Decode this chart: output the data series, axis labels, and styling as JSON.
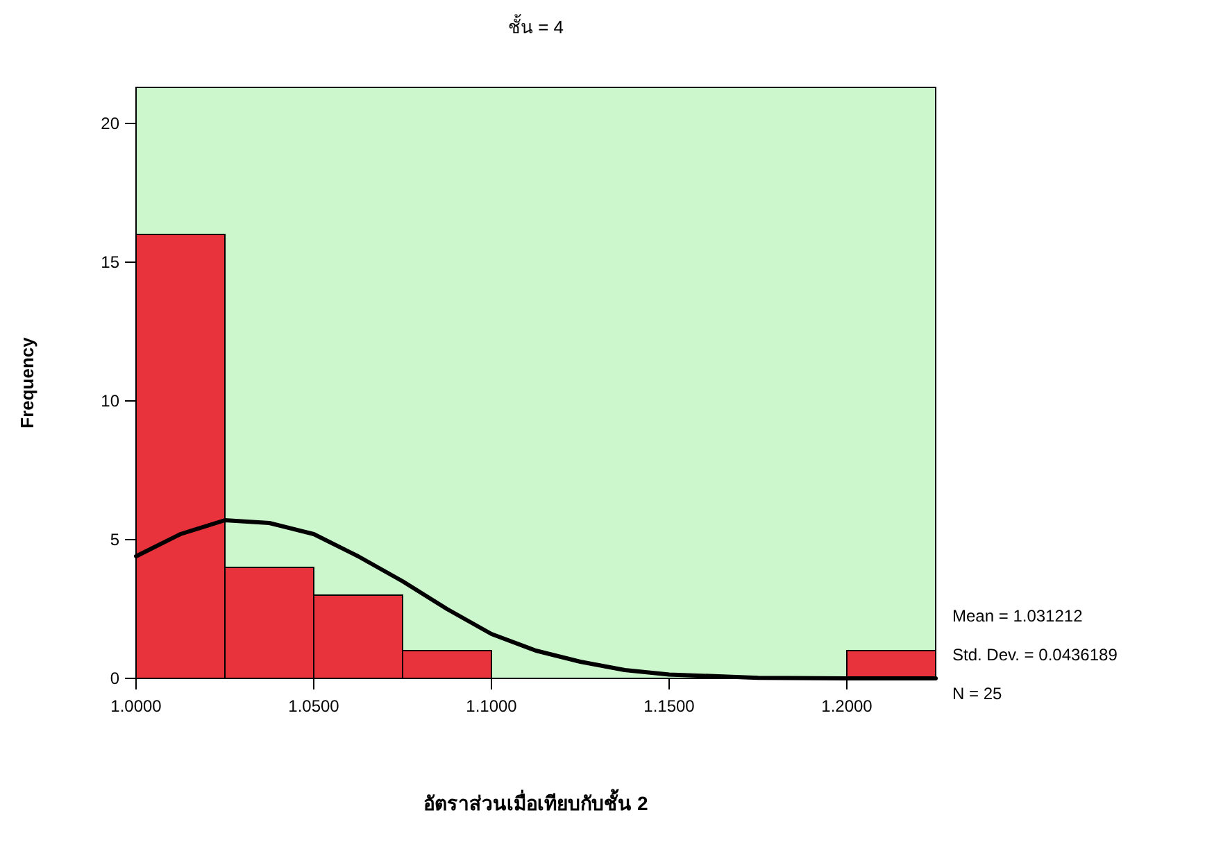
{
  "chart_data": {
    "type": "histogram",
    "title": "ชั้น = 4",
    "xlabel": "อัตราส่วนเมื่อเทียบกับชั้น 2",
    "ylabel": "Frequency",
    "xlim": [
      1.0,
      1.225
    ],
    "ylim": [
      0,
      21.3
    ],
    "xticks": [
      {
        "value": 1.0,
        "label": "1.0000"
      },
      {
        "value": 1.05,
        "label": "1.0500"
      },
      {
        "value": 1.1,
        "label": "1.1000"
      },
      {
        "value": 1.15,
        "label": "1.1500"
      },
      {
        "value": 1.2,
        "label": "1.2000"
      }
    ],
    "yticks": [
      0,
      5,
      10,
      15,
      20
    ],
    "grid": false,
    "series": [
      {
        "type": "histogram",
        "color": "#e8333c",
        "bins": [
          1.0,
          1.025,
          1.05,
          1.075,
          1.1,
          1.125,
          1.15,
          1.175,
          1.2,
          1.225
        ],
        "values": [
          16,
          4,
          3,
          1,
          0,
          0,
          0,
          0,
          1
        ]
      },
      {
        "type": "line",
        "color": "#000000",
        "x": [
          1.0,
          1.0125,
          1.025,
          1.0375,
          1.05,
          1.0625,
          1.075,
          1.0875,
          1.1,
          1.1125,
          1.125,
          1.1375,
          1.15,
          1.175,
          1.2,
          1.225
        ],
        "values": [
          4.4,
          5.2,
          5.7,
          5.6,
          5.2,
          4.4,
          3.5,
          2.5,
          1.6,
          1.0,
          0.6,
          0.3,
          0.14,
          0.02,
          0,
          0
        ]
      }
    ],
    "annotations": [
      "Mean = 1.031212",
      "Std. Dev. = 0.0436189",
      "N = 25"
    ]
  }
}
